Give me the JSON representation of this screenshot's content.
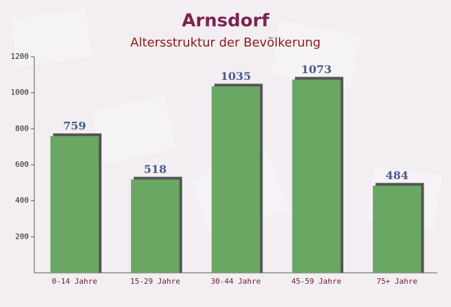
{
  "chart_data": {
    "type": "bar",
    "title": "Arnsdorf",
    "subtitle": "Altersstruktur der Bevölkerung",
    "categories": [
      "0-14 Jahre",
      "15-29 Jahre",
      "30-44 Jahre",
      "45-59 Jahre",
      "75+ Jahre"
    ],
    "values": [
      759,
      518,
      1035,
      1073,
      484
    ],
    "color": "#6aa763",
    "ylim": [
      0,
      1200
    ],
    "yticks": [
      200,
      400,
      600,
      800,
      1000,
      1200
    ],
    "grid": false
  }
}
